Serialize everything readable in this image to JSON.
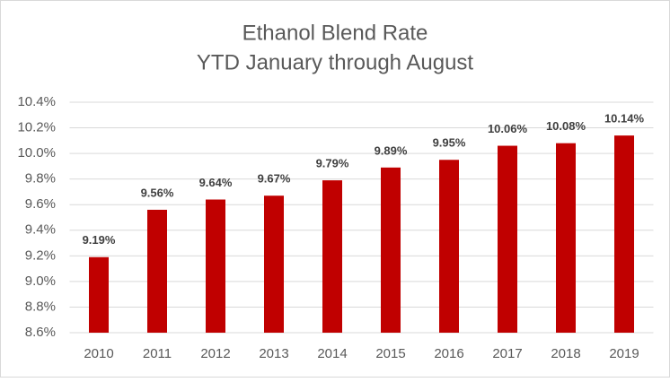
{
  "chart_data": {
    "type": "bar",
    "title": "Ethanol Blend Rate",
    "subtitle": "YTD January through August",
    "categories": [
      "2010",
      "2011",
      "2012",
      "2013",
      "2014",
      "2015",
      "2016",
      "2017",
      "2018",
      "2019"
    ],
    "values": [
      9.19,
      9.56,
      9.64,
      9.67,
      9.79,
      9.89,
      9.95,
      10.06,
      10.08,
      10.14
    ],
    "value_labels": [
      "9.19%",
      "9.56%",
      "9.64%",
      "9.67%",
      "9.79%",
      "9.89%",
      "9.95%",
      "10.06%",
      "10.08%",
      "10.14%"
    ],
    "color": "#c00000",
    "ylim": [
      8.6,
      10.4
    ],
    "yticks": [
      {
        "value": 8.6,
        "label": "8.6%"
      },
      {
        "value": 8.8,
        "label": "8.8%"
      },
      {
        "value": 9.0,
        "label": "9.0%"
      },
      {
        "value": 9.2,
        "label": "9.2%"
      },
      {
        "value": 9.4,
        "label": "9.4%"
      },
      {
        "value": 9.6,
        "label": "9.6%"
      },
      {
        "value": 9.8,
        "label": "9.8%"
      },
      {
        "value": 10.0,
        "label": "10.0%"
      },
      {
        "value": 10.2,
        "label": "10.2%"
      },
      {
        "value": 10.4,
        "label": "10.4%"
      }
    ],
    "grid": true
  }
}
